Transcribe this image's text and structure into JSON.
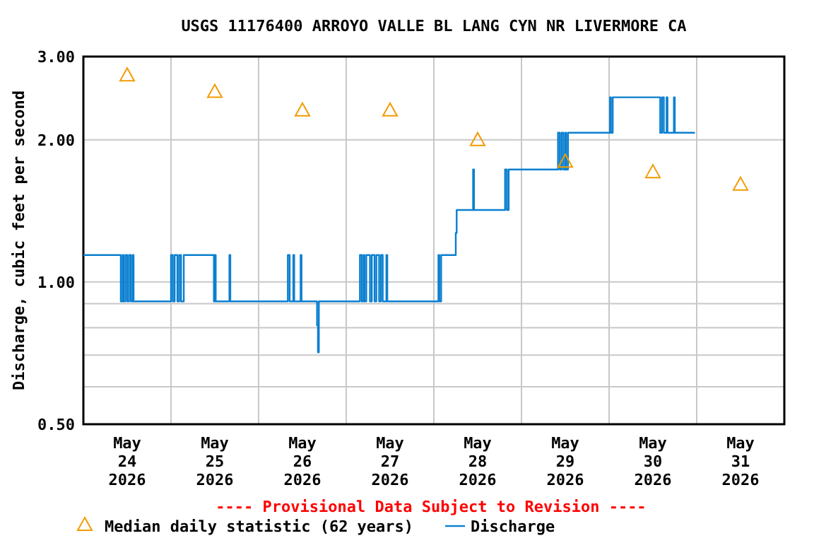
{
  "chart_data": {
    "type": "step",
    "title": "USGS 11176400 ARROYO VALLE BL LANG CYN NR LIVERMORE CA",
    "ylabel": "Discharge, cubic feet per second",
    "annotations": [
      "---- Provisional Data Subject to Revision ----"
    ],
    "log": "y",
    "grid": true,
    "legend": "bottom",
    "ylim": [
      0.5,
      3.0
    ],
    "yticks": [
      {
        "value": 0.5,
        "label": "0.50"
      },
      {
        "value": 0.6,
        "label": null
      },
      {
        "value": 0.7,
        "label": null
      },
      {
        "value": 0.8,
        "label": null
      },
      {
        "value": 0.9,
        "label": null
      },
      {
        "value": 1.0,
        "label": "1.00"
      },
      {
        "value": 2.0,
        "label": "2.00"
      },
      {
        "value": 3.0,
        "label": "3.00"
      }
    ],
    "xlim": [
      "2026-05-24T00:00",
      "2026-06-01T00:00"
    ],
    "xticks": [
      {
        "value": "2026-05-24T12:00",
        "label": "May\n24\n2026"
      },
      {
        "value": "2026-05-25T00:00",
        "label": null
      },
      {
        "value": "2026-05-25T12:00",
        "label": "May\n25\n2026"
      },
      {
        "value": "2026-05-26T00:00",
        "label": null
      },
      {
        "value": "2026-05-26T12:00",
        "label": "May\n26\n2026"
      },
      {
        "value": "2026-05-27T00:00",
        "label": null
      },
      {
        "value": "2026-05-27T12:00",
        "label": "May\n27\n2026"
      },
      {
        "value": "2026-05-28T00:00",
        "label": null
      },
      {
        "value": "2026-05-28T12:00",
        "label": "May\n28\n2026"
      },
      {
        "value": "2026-05-29T00:00",
        "label": null
      },
      {
        "value": "2026-05-29T12:00",
        "label": "May\n29\n2026"
      },
      {
        "value": "2026-05-30T00:00",
        "label": null
      },
      {
        "value": "2026-05-30T12:00",
        "label": "May\n30\n2026"
      },
      {
        "value": "2026-05-31T00:00",
        "label": null
      },
      {
        "value": "2026-05-31T12:00",
        "label": "May\n31\n2026"
      }
    ],
    "series": [
      {
        "name": "Median daily statistic (62 years)",
        "type": "scatter",
        "marker": "triangle",
        "color": "#f29b00",
        "x": [
          "2026-05-24T12:00",
          "2026-05-25T12:00",
          "2026-05-26T12:00",
          "2026-05-27T12:00",
          "2026-05-28T12:00",
          "2026-05-29T12:00",
          "2026-05-30T12:00",
          "2026-05-31T12:00"
        ],
        "values": [
          2.74,
          2.53,
          2.31,
          2.31,
          2.0,
          1.8,
          1.71,
          1.61
        ]
      },
      {
        "name": "Discharge",
        "color": "#0a7fd0",
        "x": [
          "2026-05-24T00:00",
          "2026-05-24T10:15",
          "2026-05-24T10:45",
          "2026-05-24T11:00",
          "2026-05-24T11:30",
          "2026-05-24T12:00",
          "2026-05-24T12:30",
          "2026-05-24T13:00",
          "2026-05-24T13:30",
          "2026-05-24T13:45",
          "2026-05-25T00:00",
          "2026-05-25T00:30",
          "2026-05-25T01:00",
          "2026-05-25T01:45",
          "2026-05-25T02:15",
          "2026-05-25T02:45",
          "2026-05-25T03:30",
          "2026-05-25T11:45",
          "2026-05-25T12:00",
          "2026-05-25T12:15",
          "2026-05-25T16:00",
          "2026-05-25T16:15",
          "2026-05-26T08:00",
          "2026-05-26T08:30",
          "2026-05-26T09:30",
          "2026-05-26T09:45",
          "2026-05-26T11:30",
          "2026-05-26T11:45",
          "2026-05-26T16:00",
          "2026-05-26T16:15",
          "2026-05-26T16:30",
          "2026-05-27T03:45",
          "2026-05-27T04:15",
          "2026-05-27T04:45",
          "2026-05-27T05:00",
          "2026-05-27T05:30",
          "2026-05-27T06:30",
          "2026-05-27T07:00",
          "2026-05-27T07:45",
          "2026-05-27T08:15",
          "2026-05-27T09:00",
          "2026-05-27T09:30",
          "2026-05-27T10:00",
          "2026-05-27T11:00",
          "2026-05-27T11:15",
          "2026-05-28T01:15",
          "2026-05-28T01:30",
          "2026-05-28T02:00",
          "2026-05-28T06:00",
          "2026-05-28T06:15",
          "2026-05-28T10:45",
          "2026-05-28T11:00",
          "2026-05-28T19:30",
          "2026-05-28T20:00",
          "2026-05-28T20:30",
          "2026-05-29T10:00",
          "2026-05-29T10:30",
          "2026-05-29T11:00",
          "2026-05-29T11:30",
          "2026-05-29T12:00",
          "2026-05-29T12:15",
          "2026-05-29T12:45",
          "2026-05-30T00:15",
          "2026-05-30T00:30",
          "2026-05-30T01:00",
          "2026-05-30T14:00",
          "2026-05-30T14:30",
          "2026-05-30T15:00",
          "2026-05-30T15:45",
          "2026-05-30T16:00",
          "2026-05-30T17:45",
          "2026-05-30T18:00",
          "2026-05-30T23:30"
        ],
        "values": [
          1.14,
          0.91,
          1.14,
          0.91,
          1.14,
          0.91,
          1.14,
          0.91,
          1.14,
          0.91,
          1.14,
          0.91,
          1.14,
          0.91,
          1.14,
          0.91,
          1.14,
          0.91,
          1.14,
          0.91,
          1.14,
          0.91,
          1.14,
          0.91,
          1.14,
          0.91,
          1.14,
          0.91,
          0.81,
          0.71,
          0.91,
          1.14,
          0.91,
          1.14,
          0.91,
          1.14,
          0.91,
          1.14,
          0.91,
          1.14,
          0.91,
          1.14,
          0.91,
          1.14,
          0.91,
          1.14,
          0.91,
          1.14,
          1.27,
          1.42,
          1.73,
          1.42,
          1.73,
          1.42,
          1.73,
          2.07,
          1.73,
          2.07,
          1.73,
          2.07,
          1.73,
          2.07,
          2.46,
          2.07,
          2.46,
          2.07,
          2.46,
          2.07,
          2.46,
          2.07,
          2.46,
          2.07,
          2.07
        ]
      }
    ]
  }
}
